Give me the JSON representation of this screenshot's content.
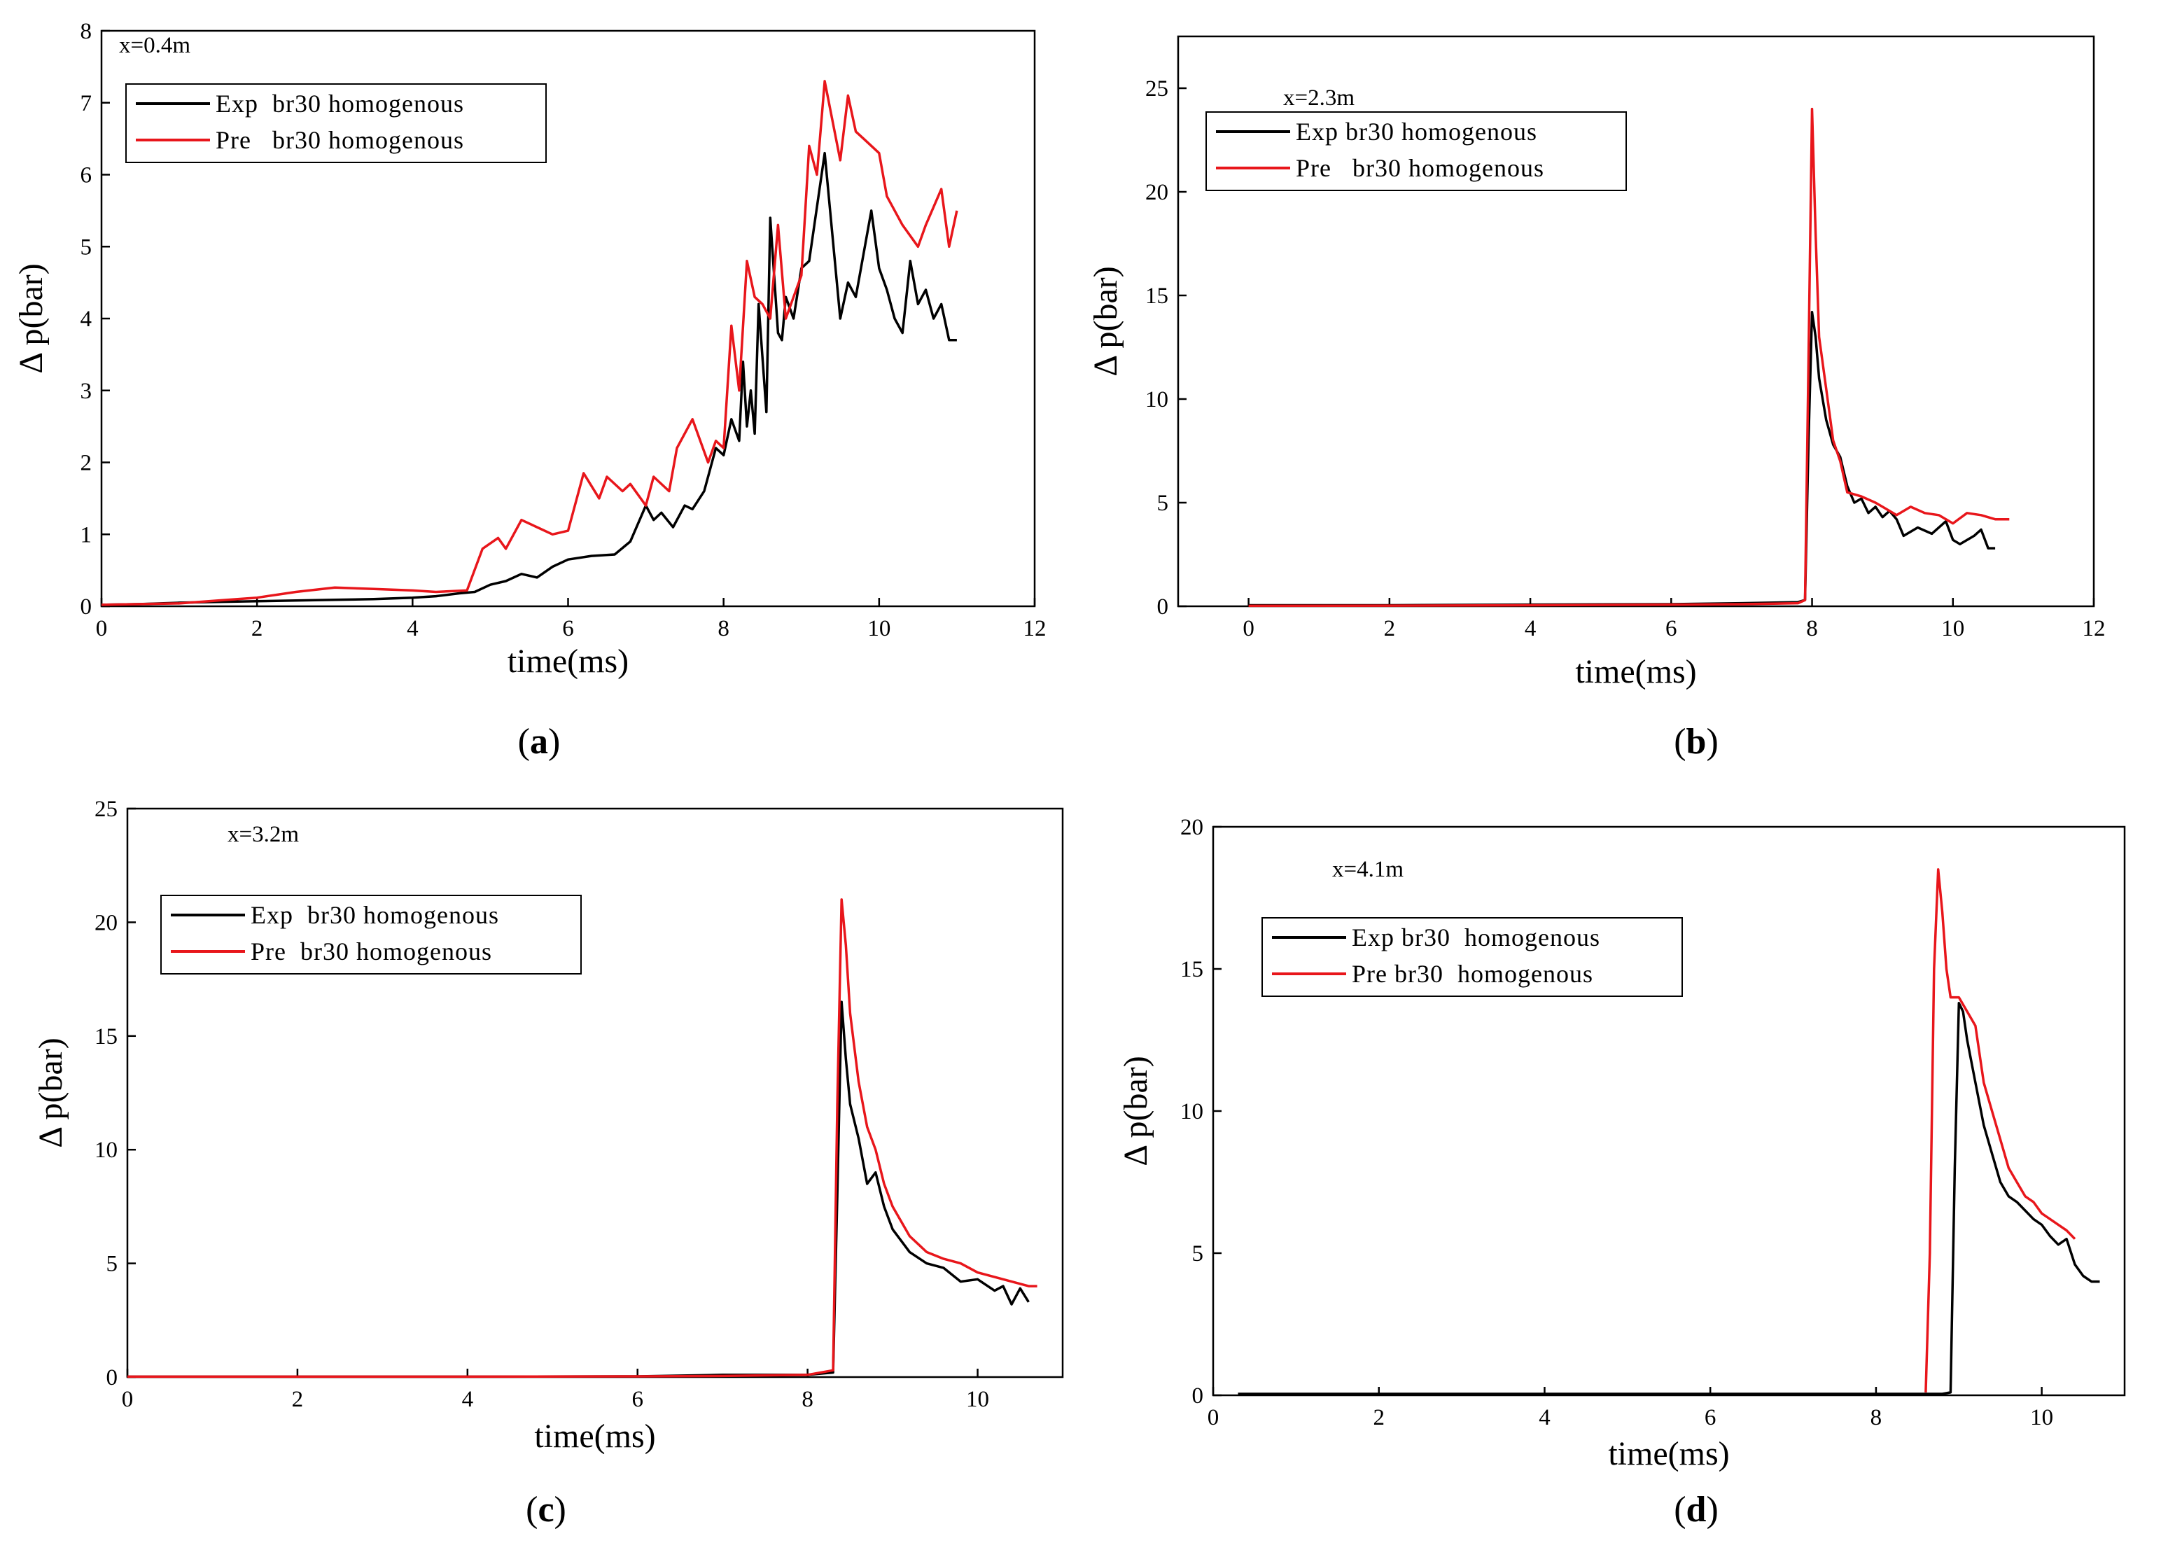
{
  "figure": {
    "panels": [
      {
        "id": "a",
        "label_open": "(",
        "label_letter": "a",
        "label_close": ")"
      },
      {
        "id": "b",
        "label_open": "(",
        "label_letter": "b",
        "label_close": ")"
      },
      {
        "id": "c",
        "label_open": "(",
        "label_letter": "c",
        "label_close": ")"
      },
      {
        "id": "d",
        "label_open": "(",
        "label_letter": "d",
        "label_close": ")"
      }
    ]
  },
  "colors": {
    "exp": "#000000",
    "pre": "#e8161b",
    "axis": "#000000"
  },
  "chart_data": [
    {
      "type": "line",
      "panel": "a",
      "annotation": "x=0.4m",
      "xlabel": "time(ms)",
      "ylabel": "Δ p(bar)",
      "xlim": [
        0,
        12
      ],
      "ylim": [
        0,
        8
      ],
      "xticks": [
        0,
        2,
        4,
        6,
        8,
        10,
        12
      ],
      "yticks": [
        0,
        1,
        2,
        3,
        4,
        5,
        6,
        7,
        8
      ],
      "legend": [
        "Exp  br30 homogenous",
        "Pre   br30 homogenous"
      ],
      "series": [
        {
          "name": "Exp br30 homogenous",
          "color_key": "exp",
          "x": [
            0,
            0.5,
            1,
            1.5,
            2,
            2.5,
            3,
            3.5,
            4,
            4.3,
            4.6,
            4.8,
            5.0,
            5.2,
            5.4,
            5.6,
            5.8,
            6.0,
            6.3,
            6.6,
            6.8,
            7.0,
            7.1,
            7.2,
            7.35,
            7.5,
            7.6,
            7.75,
            7.9,
            8.0,
            8.1,
            8.2,
            8.25,
            8.3,
            8.35,
            8.4,
            8.45,
            8.55,
            8.6,
            8.7,
            8.75,
            8.8,
            8.9,
            9.0,
            9.1,
            9.3,
            9.5,
            9.6,
            9.7,
            9.9,
            10.0,
            10.1,
            10.2,
            10.3,
            10.4,
            10.5,
            10.6,
            10.7,
            10.8,
            10.9,
            11.0
          ],
          "y": [
            0.02,
            0.03,
            0.05,
            0.06,
            0.07,
            0.08,
            0.09,
            0.1,
            0.12,
            0.14,
            0.18,
            0.2,
            0.3,
            0.35,
            0.45,
            0.4,
            0.55,
            0.65,
            0.7,
            0.72,
            0.9,
            1.4,
            1.2,
            1.3,
            1.1,
            1.4,
            1.35,
            1.6,
            2.2,
            2.1,
            2.6,
            2.3,
            3.4,
            2.5,
            3.0,
            2.4,
            4.2,
            2.7,
            5.4,
            3.8,
            3.7,
            4.3,
            4.0,
            4.7,
            4.8,
            6.3,
            4.0,
            4.5,
            4.3,
            5.5,
            4.7,
            4.4,
            4.0,
            3.8,
            4.8,
            4.2,
            4.4,
            4.0,
            4.2,
            3.7,
            3.7
          ]
        },
        {
          "name": "Pre br30 homogenous",
          "color_key": "pre",
          "x": [
            0,
            0.5,
            1,
            1.5,
            2,
            2.5,
            3,
            3.5,
            4,
            4.3,
            4.7,
            4.9,
            5.1,
            5.2,
            5.4,
            5.6,
            5.8,
            6.0,
            6.2,
            6.4,
            6.5,
            6.7,
            6.8,
            7.0,
            7.1,
            7.3,
            7.4,
            7.6,
            7.8,
            7.9,
            8.0,
            8.1,
            8.2,
            8.3,
            8.4,
            8.5,
            8.6,
            8.7,
            8.8,
            8.9,
            9.0,
            9.1,
            9.2,
            9.3,
            9.5,
            9.6,
            9.7,
            9.8,
            10.0,
            10.1,
            10.3,
            10.5,
            10.6,
            10.8,
            10.9,
            11.0
          ],
          "y": [
            0.02,
            0.03,
            0.04,
            0.08,
            0.12,
            0.2,
            0.26,
            0.24,
            0.22,
            0.2,
            0.22,
            0.8,
            0.95,
            0.8,
            1.2,
            1.1,
            1.0,
            1.05,
            1.85,
            1.5,
            1.8,
            1.6,
            1.7,
            1.4,
            1.8,
            1.6,
            2.2,
            2.6,
            2.0,
            2.3,
            2.2,
            3.9,
            3.0,
            4.8,
            4.3,
            4.2,
            4.0,
            5.3,
            4.0,
            4.3,
            4.6,
            6.4,
            6.0,
            7.3,
            6.2,
            7.1,
            6.6,
            6.5,
            6.3,
            5.7,
            5.3,
            5.0,
            5.3,
            5.8,
            5.0,
            5.5
          ]
        }
      ]
    },
    {
      "type": "line",
      "panel": "b",
      "annotation": "x=2.3m",
      "xlabel": "time(ms)",
      "ylabel": "Δ p(bar)",
      "xlim": [
        -1,
        12
      ],
      "ylim": [
        0,
        27.5
      ],
      "xticks": [
        0,
        2,
        4,
        6,
        8,
        10,
        12
      ],
      "yticks": [
        0,
        5,
        10,
        15,
        20,
        25
      ],
      "legend": [
        "Exp br30 homogenous",
        "Pre   br30 homogenous"
      ],
      "series": [
        {
          "name": "Exp br30 homogenous",
          "color_key": "exp",
          "x": [
            0,
            2,
            4,
            6,
            7,
            7.8,
            7.9,
            7.95,
            8.0,
            8.05,
            8.1,
            8.2,
            8.3,
            8.4,
            8.5,
            8.6,
            8.7,
            8.8,
            8.9,
            9.0,
            9.1,
            9.2,
            9.3,
            9.5,
            9.7,
            9.9,
            10.0,
            10.1,
            10.3,
            10.4,
            10.5,
            10.6
          ],
          "y": [
            0.05,
            0.05,
            0.08,
            0.1,
            0.15,
            0.2,
            0.3,
            8.0,
            14.2,
            13.0,
            11.0,
            9.0,
            7.8,
            7.2,
            5.8,
            5.0,
            5.2,
            4.5,
            4.8,
            4.3,
            4.6,
            4.2,
            3.4,
            3.8,
            3.5,
            4.1,
            3.2,
            3.0,
            3.4,
            3.7,
            2.8,
            2.8
          ]
        },
        {
          "name": "Pre br30 homogenous",
          "color_key": "pre",
          "x": [
            0,
            2,
            4,
            6,
            7,
            7.8,
            7.9,
            7.95,
            8.0,
            8.05,
            8.1,
            8.2,
            8.3,
            8.4,
            8.5,
            8.7,
            8.9,
            9.0,
            9.2,
            9.4,
            9.6,
            9.8,
            10.0,
            10.2,
            10.4,
            10.6,
            10.8
          ],
          "y": [
            0.02,
            0.03,
            0.05,
            0.08,
            0.1,
            0.15,
            0.3,
            12.0,
            24.0,
            18.0,
            13.0,
            10.5,
            8.0,
            7.0,
            5.5,
            5.3,
            5.0,
            4.8,
            4.4,
            4.8,
            4.5,
            4.4,
            4.0,
            4.5,
            4.4,
            4.2,
            4.2
          ]
        }
      ]
    },
    {
      "type": "line",
      "panel": "c",
      "annotation": "x=3.2m",
      "xlabel": "time(ms)",
      "ylabel": "Δ p(bar)",
      "xlim": [
        0,
        11
      ],
      "ylim": [
        0,
        25
      ],
      "xticks": [
        0,
        2,
        4,
        6,
        8,
        10
      ],
      "yticks": [
        0,
        5,
        10,
        15,
        20,
        25
      ],
      "legend": [
        "Exp  br30 homogenous",
        "Pre  br30 homogenous"
      ],
      "series": [
        {
          "name": "Exp br30 homogenous",
          "color_key": "exp",
          "x": [
            0,
            2,
            4,
            6,
            7,
            8.0,
            8.3,
            8.35,
            8.4,
            8.45,
            8.5,
            8.6,
            8.7,
            8.8,
            8.9,
            9.0,
            9.2,
            9.4,
            9.6,
            9.8,
            10.0,
            10.2,
            10.3,
            10.4,
            10.5,
            10.6
          ],
          "y": [
            0.02,
            0.02,
            0.02,
            0.03,
            0.1,
            0.1,
            0.2,
            8.0,
            16.5,
            14.0,
            12.0,
            10.5,
            8.5,
            9.0,
            7.5,
            6.5,
            5.5,
            5.0,
            4.8,
            4.2,
            4.3,
            3.8,
            4.0,
            3.2,
            3.9,
            3.3
          ]
        },
        {
          "name": "Pre br30 homogenous",
          "color_key": "pre",
          "x": [
            0,
            2,
            4,
            6,
            7,
            8.0,
            8.3,
            8.35,
            8.4,
            8.45,
            8.5,
            8.6,
            8.7,
            8.8,
            8.9,
            9.0,
            9.2,
            9.4,
            9.6,
            9.8,
            10.0,
            10.2,
            10.4,
            10.6,
            10.7
          ],
          "y": [
            0.02,
            0.02,
            0.02,
            0.03,
            0.05,
            0.1,
            0.3,
            12.0,
            21.0,
            19.0,
            16.0,
            13.0,
            11.0,
            10.0,
            8.5,
            7.5,
            6.2,
            5.5,
            5.2,
            5.0,
            4.6,
            4.4,
            4.2,
            4.0,
            4.0
          ]
        }
      ]
    },
    {
      "type": "line",
      "panel": "d",
      "annotation": "x=4.1m",
      "xlabel": "time(ms)",
      "ylabel": "Δ p(bar)",
      "xlim": [
        0,
        11
      ],
      "ylim": [
        0,
        20
      ],
      "xticks": [
        0,
        2,
        4,
        6,
        8,
        10
      ],
      "yticks": [
        0,
        5,
        10,
        15,
        20
      ],
      "legend": [
        "Exp br30  homogenous",
        "Pre br30  homogenous"
      ],
      "series": [
        {
          "name": "Exp br30 homogenous",
          "color_key": "exp",
          "x": [
            0.3,
            2,
            4,
            6,
            7,
            8,
            8.8,
            8.9,
            8.95,
            9.0,
            9.05,
            9.1,
            9.2,
            9.3,
            9.4,
            9.5,
            9.6,
            9.7,
            9.8,
            9.9,
            10.0,
            10.1,
            10.2,
            10.3,
            10.4,
            10.5,
            10.6,
            10.7
          ],
          "y": [
            0.05,
            0.05,
            0.05,
            0.05,
            0.05,
            0.05,
            0.05,
            0.1,
            8.0,
            13.8,
            13.5,
            12.5,
            11.0,
            9.5,
            8.5,
            7.5,
            7.0,
            6.8,
            6.5,
            6.2,
            6.0,
            5.6,
            5.3,
            5.5,
            4.6,
            4.2,
            4.0,
            4.0
          ]
        },
        {
          "name": "Pre br30 homogenous",
          "color_key": "pre",
          "x": [
            8.6,
            8.65,
            8.7,
            8.75,
            8.8,
            8.85,
            8.9,
            9.0,
            9.1,
            9.2,
            9.3,
            9.4,
            9.5,
            9.6,
            9.7,
            9.8,
            9.9,
            10.0,
            10.1,
            10.2,
            10.3,
            10.4
          ],
          "y": [
            0.1,
            5.0,
            15.0,
            18.5,
            17.0,
            15.0,
            14.0,
            14.0,
            13.5,
            13.0,
            11.0,
            10.0,
            9.0,
            8.0,
            7.5,
            7.0,
            6.8,
            6.4,
            6.2,
            6.0,
            5.8,
            5.5
          ]
        }
      ]
    }
  ]
}
